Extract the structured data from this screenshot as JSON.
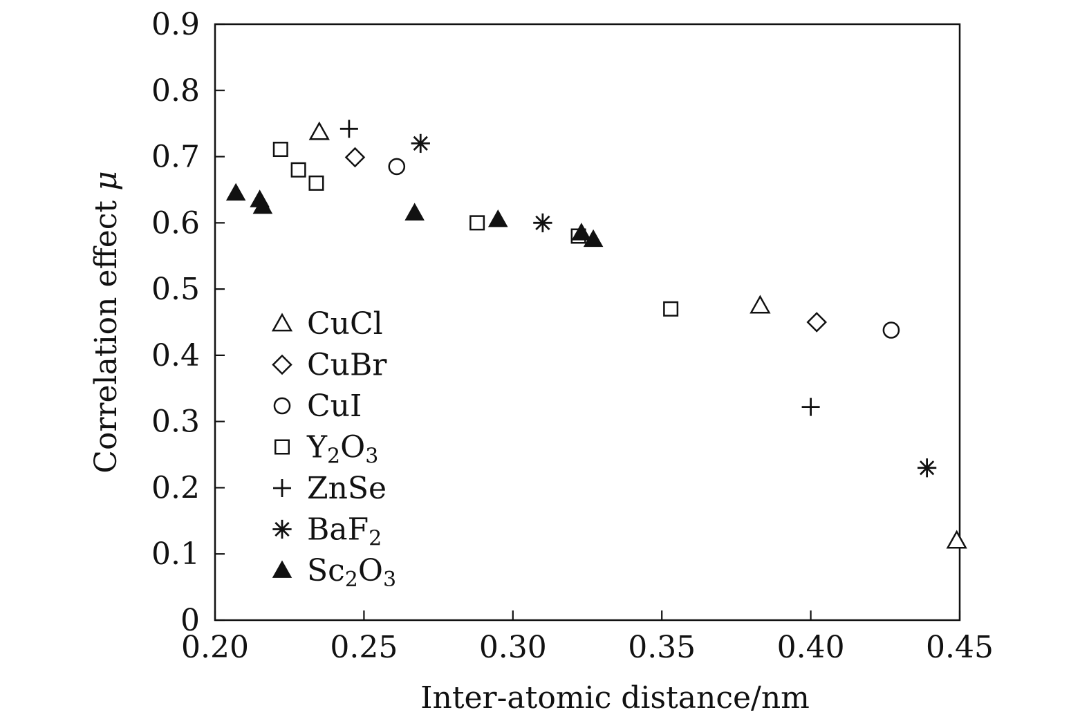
{
  "chart_data": {
    "type": "scatter",
    "xlabel": "Inter-atomic distance/nm",
    "ylabel": "Correlation effect μ",
    "xlim": [
      0.2,
      0.45
    ],
    "ylim": [
      0,
      0.9
    ],
    "x_ticks": [
      "0.20",
      "0.25",
      "0.30",
      "0.35",
      "0.40",
      "0.45"
    ],
    "y_ticks": [
      "0",
      "0.1",
      "0.2",
      "0.3",
      "0.4",
      "0.5",
      "0.6",
      "0.7",
      "0.8",
      "0.9"
    ],
    "grid": false,
    "legend_position": "left-middle",
    "series": [
      {
        "name": "CuCl",
        "marker": "open-triangle",
        "points": [
          [
            0.235,
            0.737
          ],
          [
            0.383,
            0.475
          ],
          [
            0.449,
            0.12
          ]
        ]
      },
      {
        "name": "CuBr",
        "marker": "open-diamond",
        "points": [
          [
            0.247,
            0.699
          ],
          [
            0.402,
            0.45
          ]
        ]
      },
      {
        "name": "CuI",
        "marker": "open-circle",
        "points": [
          [
            0.261,
            0.685
          ],
          [
            0.427,
            0.438
          ]
        ]
      },
      {
        "name": "Y2O3",
        "marker": "open-square",
        "points": [
          [
            0.222,
            0.711
          ],
          [
            0.228,
            0.68
          ],
          [
            0.234,
            0.66
          ],
          [
            0.288,
            0.6
          ],
          [
            0.322,
            0.58
          ],
          [
            0.353,
            0.47
          ]
        ]
      },
      {
        "name": "ZnSe",
        "marker": "plus",
        "points": [
          [
            0.245,
            0.742
          ],
          [
            0.4,
            0.322
          ]
        ]
      },
      {
        "name": "BaF2",
        "marker": "asterisk",
        "points": [
          [
            0.269,
            0.72
          ],
          [
            0.31,
            0.6
          ],
          [
            0.439,
            0.23
          ]
        ]
      },
      {
        "name": "Sc2O3",
        "marker": "filled-triangle",
        "points": [
          [
            0.207,
            0.645
          ],
          [
            0.215,
            0.635
          ],
          [
            0.216,
            0.625
          ],
          [
            0.267,
            0.615
          ],
          [
            0.295,
            0.605
          ],
          [
            0.323,
            0.585
          ],
          [
            0.327,
            0.575
          ]
        ]
      }
    ],
    "legend_labels": {
      "CuCl": {
        "base": "CuCl"
      },
      "CuBr": {
        "base": "CuBr"
      },
      "CuI": {
        "base": "CuI"
      },
      "Y2O3": {
        "parts": [
          [
            "Y",
            ""
          ],
          [
            "2",
            "sub"
          ],
          [
            "O",
            ""
          ],
          [
            "3",
            "sub"
          ]
        ]
      },
      "ZnSe": {
        "base": "ZnSe"
      },
      "BaF2": {
        "parts": [
          [
            "BaF",
            ""
          ],
          [
            "2",
            "sub"
          ]
        ]
      },
      "Sc2O3": {
        "parts": [
          [
            "Sc",
            ""
          ],
          [
            "2",
            "sub"
          ],
          [
            "O",
            ""
          ],
          [
            "3",
            "sub"
          ]
        ]
      }
    }
  }
}
